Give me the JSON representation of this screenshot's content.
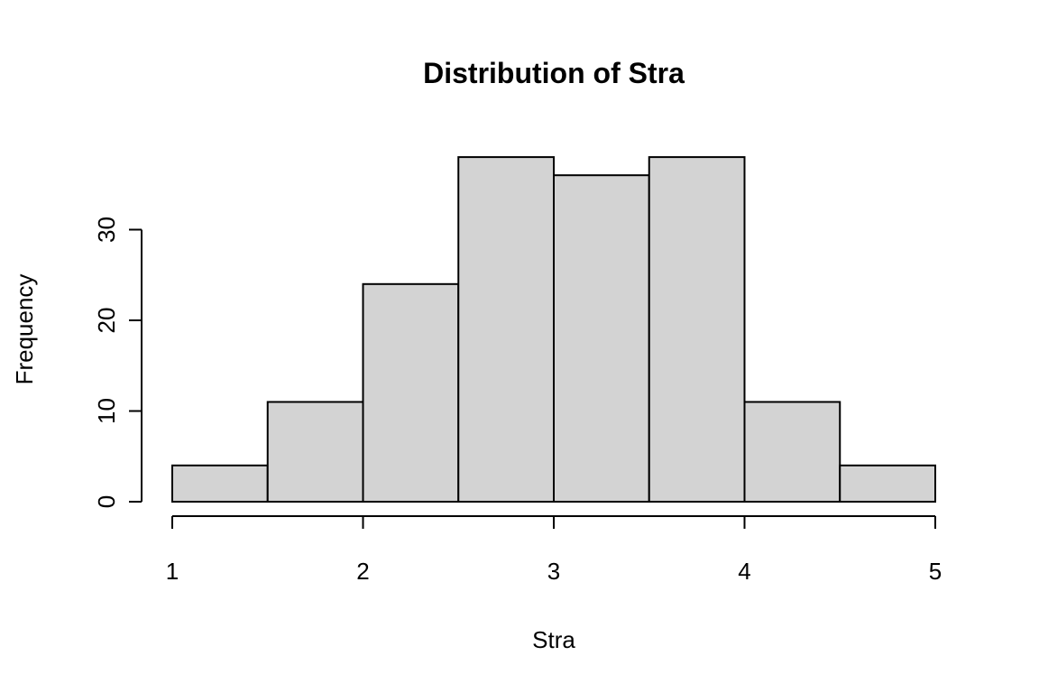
{
  "chart_data": {
    "type": "bar",
    "title": "Distribution of Stra",
    "xlabel": "Stra",
    "ylabel": "Frequency",
    "bins": [
      {
        "start": 1.0,
        "end": 1.5,
        "count": 4
      },
      {
        "start": 1.5,
        "end": 2.0,
        "count": 11
      },
      {
        "start": 2.0,
        "end": 2.5,
        "count": 24
      },
      {
        "start": 2.5,
        "end": 3.0,
        "count": 38
      },
      {
        "start": 3.0,
        "end": 3.5,
        "count": 36
      },
      {
        "start": 3.5,
        "end": 4.0,
        "count": 38
      },
      {
        "start": 4.0,
        "end": 4.5,
        "count": 11
      },
      {
        "start": 4.5,
        "end": 5.0,
        "count": 4
      }
    ],
    "x_ticks": [
      1,
      2,
      3,
      4,
      5
    ],
    "y_ticks": [
      0,
      10,
      20,
      30
    ],
    "xlim": [
      1,
      5
    ],
    "ylim": [
      0,
      38
    ],
    "grid": false,
    "bar_color": "#d3d3d3",
    "edge_color": "#000000"
  }
}
